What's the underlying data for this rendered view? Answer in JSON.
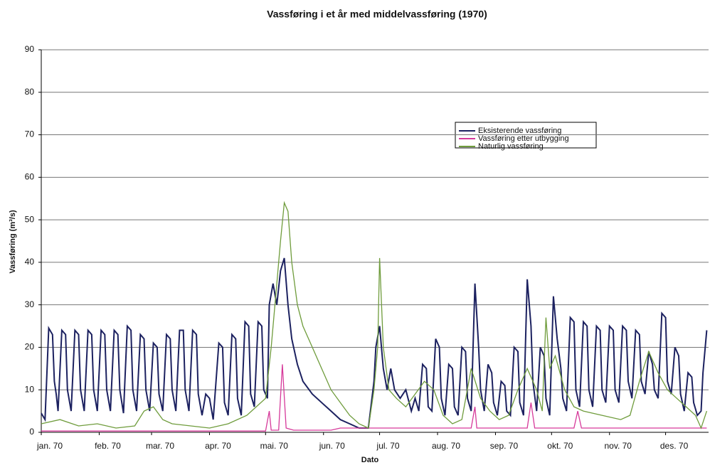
{
  "chart_data": {
    "type": "line",
    "title": "Vassføring i et år med middelvassføring (1970)",
    "xlabel": "Dato",
    "ylabel": "Vassføring (m³/s)",
    "xlim": [
      0,
      357
    ],
    "ylim": [
      0,
      90
    ],
    "yticks": [
      0,
      10,
      20,
      30,
      40,
      50,
      60,
      70,
      80,
      90
    ],
    "xticks": [
      {
        "value": 0,
        "label": "jan. 70"
      },
      {
        "value": 31,
        "label": "feb. 70"
      },
      {
        "value": 59,
        "label": "mar. 70"
      },
      {
        "value": 90,
        "label": "apr. 70"
      },
      {
        "value": 120,
        "label": "mai. 70"
      },
      {
        "value": 151,
        "label": "jun. 70"
      },
      {
        "value": 181,
        "label": "jul. 70"
      },
      {
        "value": 212,
        "label": "aug. 70"
      },
      {
        "value": 243,
        "label": "sep. 70"
      },
      {
        "value": 273,
        "label": "okt. 70"
      },
      {
        "value": 304,
        "label": "nov. 70"
      },
      {
        "value": 334,
        "label": "des. 70"
      }
    ],
    "grid": true,
    "legend": "upper right",
    "series": [
      {
        "name": "Eksisterende vassføring",
        "color": "#1c2160",
        "x": [
          0,
          2,
          4,
          6,
          7,
          8,
          9,
          11,
          13,
          14,
          16,
          18,
          20,
          21,
          23,
          25,
          27,
          28,
          30,
          32,
          34,
          35,
          37,
          39,
          41,
          42,
          44,
          46,
          48,
          49,
          51,
          53,
          55,
          56,
          58,
          60,
          62,
          63,
          65,
          67,
          69,
          70,
          72,
          74,
          76,
          77,
          79,
          81,
          83,
          84,
          86,
          88,
          90,
          92,
          95,
          97,
          98,
          100,
          102,
          104,
          105,
          107,
          109,
          111,
          112,
          114,
          116,
          118,
          119,
          121,
          122,
          124,
          126,
          128,
          130,
          132,
          134,
          137,
          140,
          145,
          150,
          155,
          160,
          165,
          170,
          175,
          178,
          179,
          181,
          183,
          185,
          187,
          189,
          192,
          195,
          198,
          200,
          202,
          204,
          206,
          207,
          209,
          211,
          213,
          214,
          216,
          218,
          220,
          221,
          223,
          225,
          227,
          228,
          230,
          232,
          234,
          235,
          237,
          239,
          241,
          242,
          244,
          246,
          248,
          249,
          251,
          253,
          255,
          256,
          258,
          260,
          262,
          263,
          265,
          267,
          269,
          270,
          272,
          274,
          276,
          278,
          279,
          281,
          283,
          285,
          286,
          288,
          290,
          292,
          293,
          295,
          297,
          299,
          300,
          302,
          304,
          306,
          307,
          309,
          311,
          313,
          314,
          316,
          318,
          320,
          321,
          323,
          325,
          327,
          328,
          330,
          332,
          334,
          335,
          337,
          339,
          341,
          342,
          344,
          346,
          348,
          349,
          351,
          353,
          354,
          356
        ],
        "values": [
          4.5,
          3,
          24.5,
          23,
          12,
          9,
          5,
          24,
          23,
          10,
          5,
          24,
          23,
          10,
          5,
          24,
          23,
          10,
          5,
          24,
          23,
          10,
          5,
          24,
          23,
          10,
          4.5,
          25,
          24,
          10,
          5,
          23,
          22,
          10,
          5,
          21,
          20,
          9,
          5,
          23,
          22,
          10,
          5,
          24,
          24,
          10,
          5,
          24,
          23,
          9,
          4,
          9,
          8,
          3,
          21,
          20,
          7,
          4,
          23,
          22,
          8,
          4,
          26,
          25,
          9,
          6,
          26,
          25,
          10,
          8,
          30,
          35,
          30,
          38,
          41,
          30,
          22,
          16,
          12,
          9,
          7,
          5,
          3,
          2,
          1,
          1,
          12,
          20,
          25,
          15,
          10,
          15,
          10,
          8,
          10,
          5,
          8,
          5,
          16,
          15,
          6,
          5,
          22,
          20,
          8,
          4,
          16,
          15,
          6,
          4,
          20,
          19,
          8,
          5,
          35,
          20,
          10,
          5,
          16,
          14,
          7,
          4,
          12,
          11,
          5,
          4,
          20,
          19,
          7,
          4,
          36,
          25,
          12,
          5,
          20,
          18,
          8,
          4,
          32,
          22,
          15,
          8,
          5,
          27,
          26,
          10,
          6,
          26,
          25,
          10,
          6,
          25,
          24,
          10,
          7,
          25,
          24,
          10,
          7,
          25,
          24,
          12,
          8,
          24,
          23,
          12,
          9,
          19,
          16,
          10,
          8,
          28,
          27,
          12,
          9,
          20,
          18,
          9,
          5,
          14,
          13,
          7,
          4,
          5,
          14,
          24
        ]
      },
      {
        "name": "Vassføring etter utbygging",
        "color": "#d6399a",
        "x": [
          0,
          120,
          122,
          123,
          127,
          129,
          131,
          135,
          155,
          160,
          230,
          232,
          233,
          260,
          262,
          264,
          285,
          287,
          289,
          356
        ],
        "values": [
          0.3,
          0.3,
          5,
          0.5,
          0.5,
          16,
          1,
          0.5,
          0.5,
          1,
          1,
          6,
          1,
          1,
          7,
          1,
          1,
          5,
          1,
          1
        ]
      },
      {
        "name": "Naturlig vassføring",
        "color": "#6f9c3c",
        "x": [
          0,
          10,
          20,
          30,
          40,
          50,
          55,
          60,
          65,
          70,
          80,
          90,
          100,
          110,
          115,
          120,
          123,
          126,
          128,
          130,
          132,
          134,
          137,
          140,
          145,
          150,
          155,
          160,
          165,
          170,
          175,
          178,
          180,
          181,
          183,
          186,
          190,
          195,
          200,
          205,
          210,
          215,
          220,
          225,
          230,
          235,
          240,
          245,
          250,
          255,
          260,
          265,
          268,
          270,
          272,
          275,
          280,
          285,
          290,
          300,
          310,
          315,
          320,
          325,
          330,
          335,
          340,
          345,
          350,
          353,
          356
        ],
        "values": [
          2,
          3,
          1.5,
          2,
          1,
          1.5,
          5,
          6,
          3,
          2,
          1.5,
          1,
          2,
          4,
          6,
          8,
          20,
          35,
          45,
          54,
          52,
          40,
          30,
          25,
          20,
          15,
          10,
          7,
          4,
          2,
          1,
          10,
          20,
          41,
          20,
          10,
          8,
          6,
          9,
          12,
          10,
          4,
          2,
          3,
          15,
          8,
          5,
          3,
          4,
          10,
          15,
          10,
          5,
          27,
          15,
          18,
          10,
          6,
          5,
          4,
          3,
          4,
          12,
          19,
          14,
          10,
          8,
          6,
          4,
          1,
          5
        ]
      }
    ]
  }
}
